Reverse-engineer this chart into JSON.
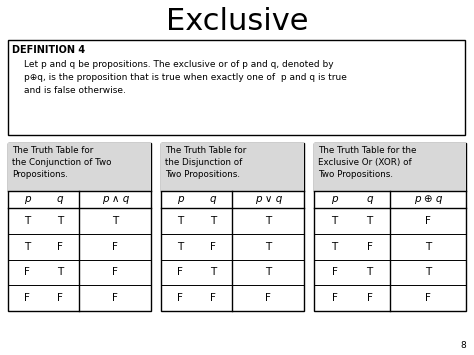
{
  "title": "Exclusive",
  "title_fontsize": 22,
  "def_title": "DEFINITION 4",
  "table1_header": "The Truth Table for\nthe Conjunction of Two\nPropositions.",
  "table1_col_headers": [
    "p",
    "q",
    "p ∧ q"
  ],
  "table1_data": [
    [
      "T",
      "T",
      "T"
    ],
    [
      "T",
      "F",
      "F"
    ],
    [
      "F",
      "T",
      "F"
    ],
    [
      "F",
      "F",
      "F"
    ]
  ],
  "table2_header": "The Truth Table for\nthe Disjunction of\nTwo Propositions.",
  "table2_col_headers": [
    "p",
    "q",
    "p ∨ q"
  ],
  "table2_data": [
    [
      "T",
      "T",
      "T"
    ],
    [
      "T",
      "F",
      "T"
    ],
    [
      "F",
      "T",
      "T"
    ],
    [
      "F",
      "F",
      "F"
    ]
  ],
  "table3_header": "The Truth Table for the\nExclusive Or (XOR) of\nTwo Propositions.",
  "table3_col_headers": [
    "p",
    "q",
    "p ⊕ q"
  ],
  "table3_data": [
    [
      "T",
      "T",
      "F"
    ],
    [
      "T",
      "F",
      "T"
    ],
    [
      "F",
      "T",
      "T"
    ],
    [
      "F",
      "F",
      "F"
    ]
  ],
  "bg_color": "#ffffff",
  "table_header_bg": "#d8d8d8",
  "border_color": "#000000",
  "def_box_bg": "#ffffff",
  "page_num": "8",
  "font_color": "#000000",
  "def_lines": [
    "Let p and q be propositions. The exclusive or of p and q, denoted by",
    "p⊕q, is the proposition that is true when exactly one of  p and q is true",
    "and is false otherwise."
  ]
}
